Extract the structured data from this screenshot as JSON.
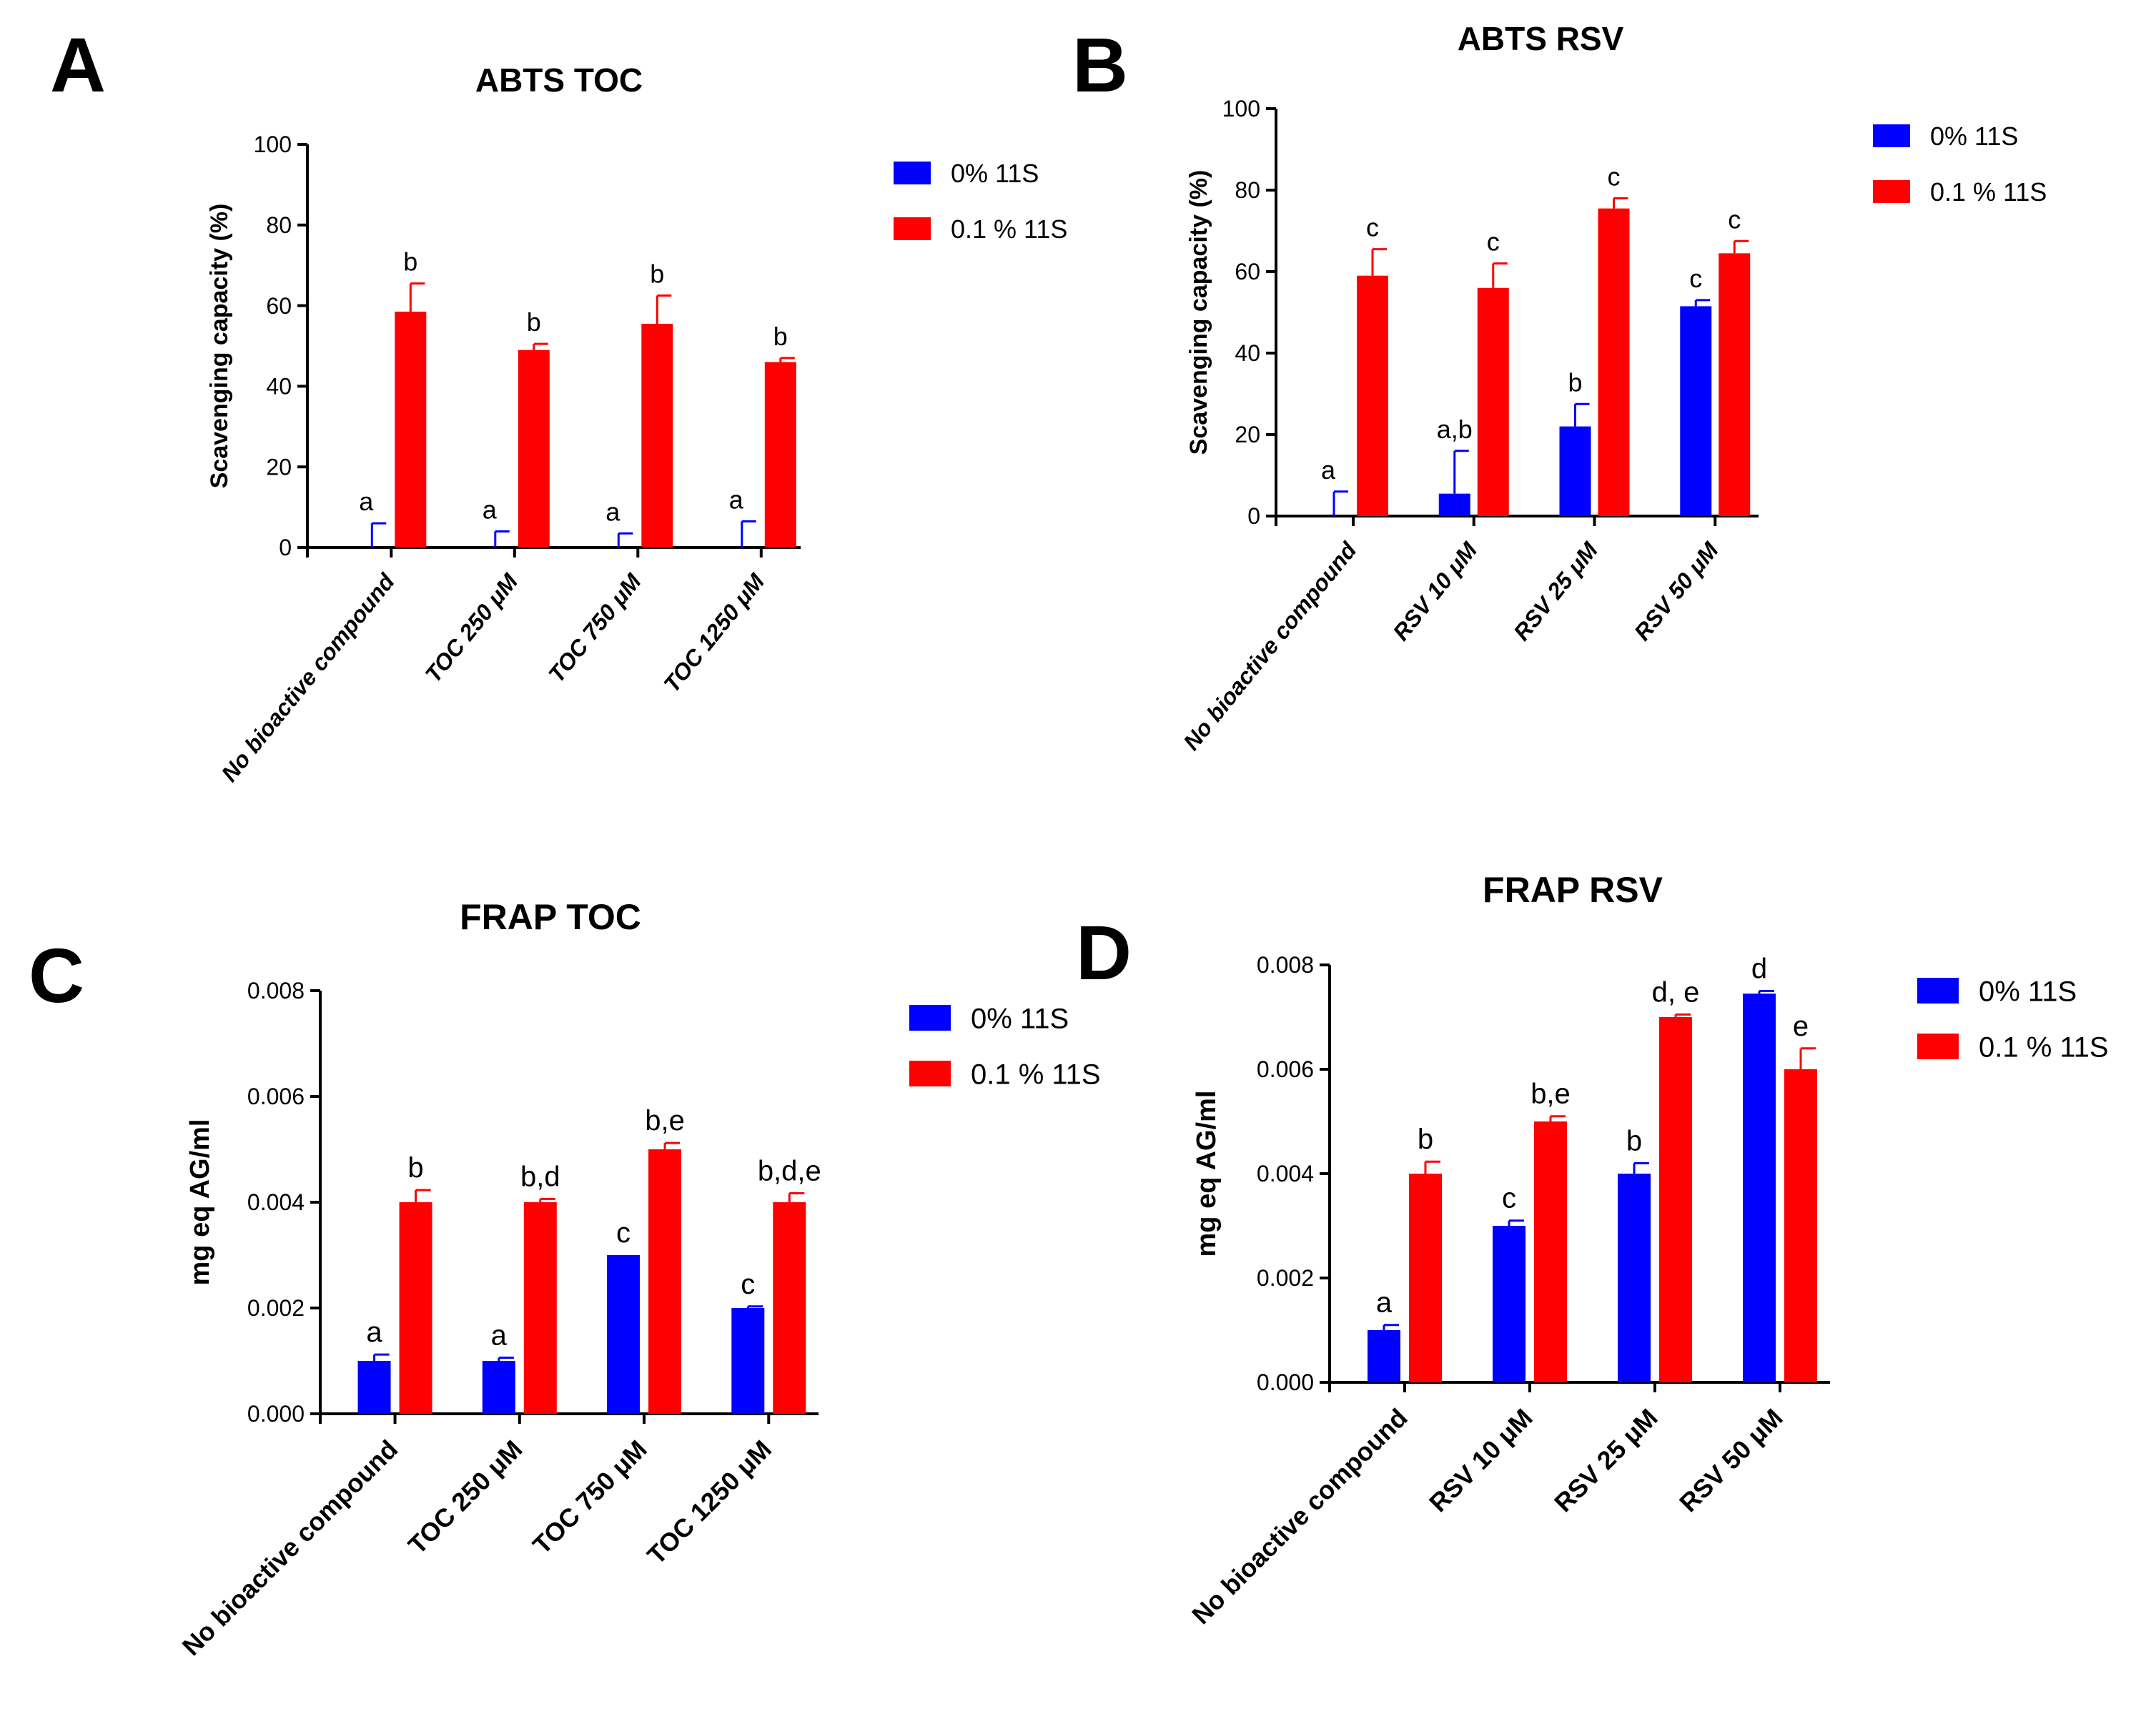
{
  "colors": {
    "series_0": "#0000ff",
    "series_1": "#ff0000",
    "axis": "#000000"
  },
  "chart_data": [
    {
      "type": "bar",
      "panel_label": "A",
      "title": "ABTS TOC",
      "ylabel": "Scavenging capacity (%)",
      "ylim": [
        0,
        100
      ],
      "yticks": [
        "0",
        "20",
        "40",
        "60",
        "80",
        "100"
      ],
      "ytick_values": [
        0,
        20,
        40,
        60,
        80,
        100
      ],
      "categories": [
        "No bioactive compound",
        "TOC 250 μM",
        "TOC 750 μM",
        "TOC 1250 μM"
      ],
      "series": [
        {
          "name": "0% 11S",
          "values": [
            0,
            0,
            0,
            0
          ],
          "errors": [
            6,
            4,
            3.5,
            6.5
          ],
          "labels": [
            "a",
            "a",
            "a",
            "a"
          ]
        },
        {
          "name": "0.1 % 11S",
          "values": [
            58.5,
            49,
            55.5,
            46
          ],
          "errors": [
            7,
            1.5,
            7,
            1
          ],
          "labels": [
            "b",
            "b",
            "b",
            "b"
          ]
        }
      ],
      "legend_position": "right"
    },
    {
      "type": "bar",
      "panel_label": "B",
      "title": "ABTS RSV",
      "ylabel": "Scavenging capacity (%)",
      "ylim": [
        0,
        100
      ],
      "yticks": [
        "0",
        "20",
        "40",
        "60",
        "80",
        "100"
      ],
      "ytick_values": [
        0,
        20,
        40,
        60,
        80,
        100
      ],
      "categories": [
        "No bioactive compound",
        "RSV 10 μM",
        "RSV 25 μM",
        "RSV 50 μM"
      ],
      "series": [
        {
          "name": "0% 11S",
          "values": [
            0,
            5.5,
            22,
            51.5
          ],
          "errors": [
            6,
            10.5,
            5.5,
            1.5
          ],
          "labels": [
            "a",
            "a,b",
            "b",
            "c"
          ]
        },
        {
          "name": "0.1 % 11S",
          "values": [
            59,
            56,
            75.5,
            64.5
          ],
          "errors": [
            6.5,
            6,
            2.5,
            3
          ],
          "labels": [
            "c",
            "c",
            "c",
            "c"
          ]
        }
      ],
      "legend_position": "right"
    },
    {
      "type": "bar",
      "panel_label": "C",
      "title": "FRAP TOC",
      "ylabel": "mg eq AG/ml",
      "ylim": [
        0,
        0.008
      ],
      "yticks": [
        "0.000",
        "0.002",
        "0.004",
        "0.006",
        "0.008"
      ],
      "ytick_values": [
        0,
        0.002,
        0.004,
        0.006,
        0.008
      ],
      "categories": [
        "No bioactive compound",
        "TOC 250 μM",
        "TOC 750 μM",
        "TOC 1250 μM"
      ],
      "series": [
        {
          "name": "0% 11S",
          "values": [
            0.001,
            0.001,
            0.003,
            0.002
          ],
          "errors": [
            0.00012,
            6e-05,
            0,
            3e-05
          ],
          "labels": [
            "a",
            "a",
            "c",
            "c"
          ]
        },
        {
          "name": "0.1 % 11S",
          "values": [
            0.004,
            0.004,
            0.005,
            0.004
          ],
          "errors": [
            0.00023,
            6e-05,
            0.00012,
            0.00017
          ],
          "labels": [
            "b",
            "b,d",
            "b,e",
            "b,d,e"
          ]
        }
      ],
      "legend_position": "right"
    },
    {
      "type": "bar",
      "panel_label": "D",
      "title": "FRAP RSV",
      "ylabel": "mg eq AG/ml",
      "ylim": [
        0,
        0.008
      ],
      "yticks": [
        "0.000",
        "0.002",
        "0.004",
        "0.006",
        "0.008"
      ],
      "ytick_values": [
        0,
        0.002,
        0.004,
        0.006,
        0.008
      ],
      "categories": [
        "No bioactive compound",
        "RSV 10 μM",
        "RSV 25 μM",
        "RSV 50 μM"
      ],
      "series": [
        {
          "name": "0% 11S",
          "values": [
            0.001,
            0.003,
            0.004,
            0.00745
          ],
          "errors": [
            0.0001,
            0.0001,
            0.0002,
            5e-05
          ],
          "labels": [
            "a",
            "c",
            "b",
            "d"
          ]
        },
        {
          "name": "0.1 % 11S",
          "values": [
            0.004,
            0.005,
            0.007,
            0.006
          ],
          "errors": [
            0.00023,
            0.0001,
            5e-05,
            0.0004
          ],
          "labels": [
            "b",
            "b,e",
            "d, e",
            "e"
          ]
        }
      ],
      "legend_position": "right"
    }
  ]
}
